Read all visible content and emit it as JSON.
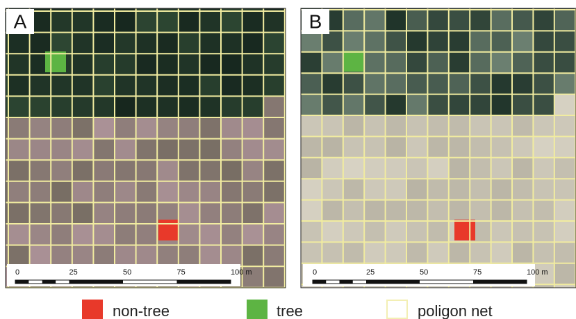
{
  "panels": [
    {
      "label": "A",
      "scale_labels": [
        "0",
        "25",
        "50",
        "75",
        "100 m"
      ]
    },
    {
      "label": "B",
      "scale_labels": [
        "0",
        "25",
        "50",
        "75",
        "100 m"
      ]
    }
  ],
  "legend": [
    {
      "label": "non-tree"
    },
    {
      "label": "tree"
    },
    {
      "label": "poligon net"
    }
  ]
}
